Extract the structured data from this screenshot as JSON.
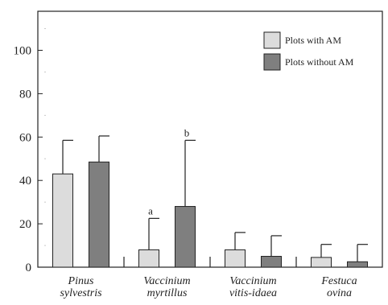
{
  "chart_data": {
    "type": "bar",
    "categories": [
      [
        "Pinus",
        "sylvestris"
      ],
      [
        "Vaccinium",
        "myrtillus"
      ],
      [
        "Vaccinium",
        "vitis-idaea"
      ],
      [
        "Festuca",
        "ovina"
      ]
    ],
    "series": [
      {
        "name": "Plots with AM",
        "color": "#dcdcdc",
        "values": [
          43,
          8,
          8,
          4.5
        ],
        "errors": [
          15.5,
          14.5,
          8,
          6
        ],
        "labels": [
          "",
          "a",
          "",
          ""
        ]
      },
      {
        "name": "Plots without AM",
        "color": "#7f7f7f",
        "values": [
          48.5,
          28,
          5,
          2.5
        ],
        "errors": [
          12,
          30.5,
          9.5,
          8
        ],
        "labels": [
          "",
          "b",
          "",
          ""
        ]
      }
    ],
    "y_ticks": [
      0,
      20,
      40,
      60,
      80,
      100
    ],
    "ylim": [
      0,
      118
    ],
    "xlabel": "",
    "ylabel": "",
    "title": "",
    "legend_position": "top-right",
    "grid": false
  }
}
